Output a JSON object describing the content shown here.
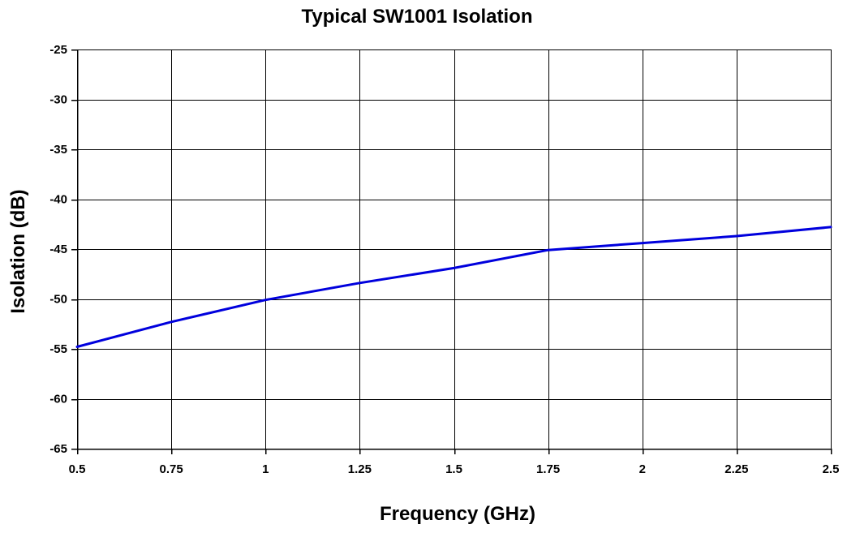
{
  "chart_data": {
    "type": "line",
    "title": "Typical SW1001 Isolation",
    "xlabel": "Frequency (GHz)",
    "ylabel": "Isolation (dB)",
    "xlim": [
      0.5,
      2.5
    ],
    "ylim": [
      -65,
      -25
    ],
    "x_ticks": [
      0.5,
      0.75,
      1,
      1.25,
      1.5,
      1.75,
      2,
      2.25,
      2.5
    ],
    "x_tick_labels": [
      "0.5",
      "0.75",
      "1",
      "1.25",
      "1.5",
      "1.75",
      "2",
      "2.25",
      "2.5"
    ],
    "y_ticks": [
      -25,
      -30,
      -35,
      -40,
      -45,
      -50,
      -55,
      -60,
      -65
    ],
    "y_tick_labels": [
      "-25",
      "-30",
      "-35",
      "-40",
      "-45",
      "-50",
      "-55",
      "-60",
      "-65"
    ],
    "grid": true,
    "legend": "none",
    "series": [
      {
        "color": "#0000dd",
        "x": [
          0.5,
          0.75,
          1,
          1.25,
          1.5,
          1.75,
          2,
          2.25,
          2.5
        ],
        "y": [
          -54.8,
          -52.3,
          -50.1,
          -48.4,
          -46.9,
          -45.1,
          -44.4,
          -43.7,
          -42.8
        ]
      }
    ]
  }
}
